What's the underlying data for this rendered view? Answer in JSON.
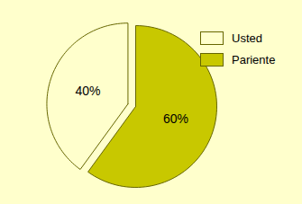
{
  "chart_data": {
    "type": "pie",
    "categories": [
      "Usted",
      "Pariente"
    ],
    "values": [
      40,
      60
    ],
    "value_labels": [
      "40%",
      "60%"
    ],
    "colors": [
      "#ffffcc",
      "#c8c800"
    ],
    "data_labels": true,
    "legend": "top-right"
  }
}
